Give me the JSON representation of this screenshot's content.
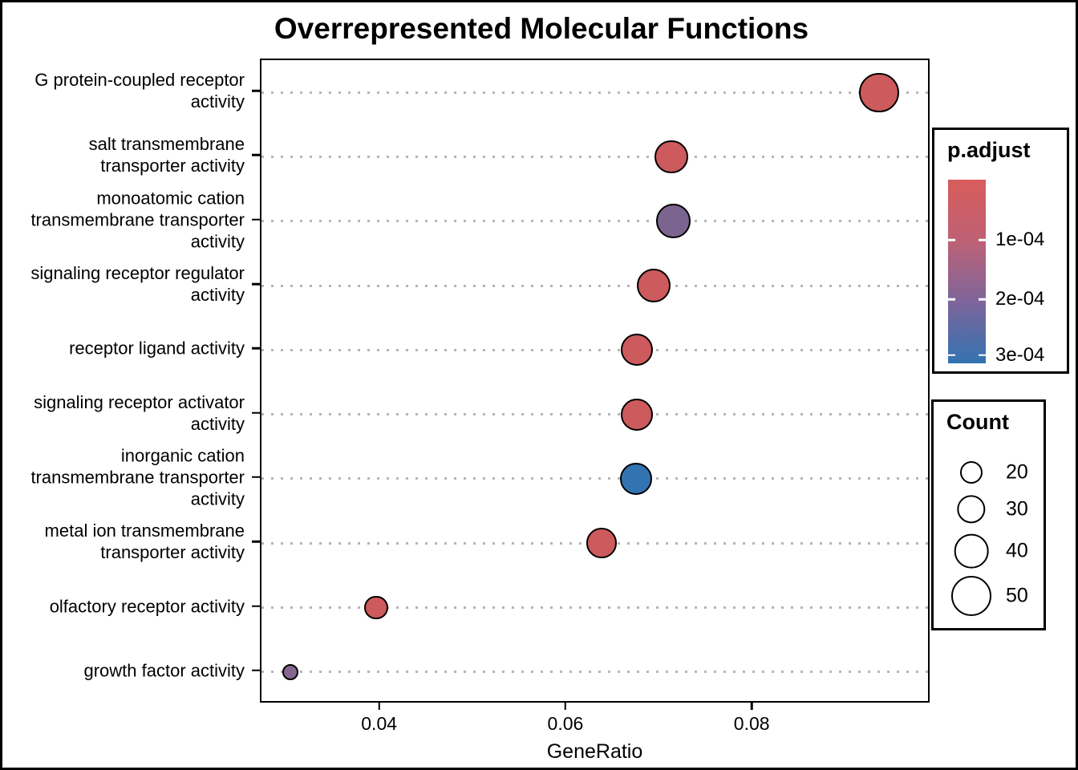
{
  "title": "Overrepresented Molecular Functions",
  "x_axis": {
    "label": "GeneRatio",
    "tick_labels": [
      "0.04",
      "0.06",
      "0.08"
    ]
  },
  "legend_padjust": {
    "title": "p.adjust",
    "tick_labels": [
      "1e-04",
      "2e-04",
      "3e-04"
    ],
    "tick_positions_pct": [
      32.8,
      65.1,
      95.6
    ],
    "gradient_stops": [
      "#D85C5B 0%",
      "#BE6174 33%",
      "#7F659B 66%",
      "#3473B1 100%"
    ]
  },
  "legend_count": {
    "title": "Count",
    "entries": [
      {
        "label": "20",
        "count": 20
      },
      {
        "label": "30",
        "count": 30
      },
      {
        "label": "40",
        "count": 40
      },
      {
        "label": "50",
        "count": 50
      }
    ]
  },
  "chart_data": {
    "type": "scatter",
    "title": "Overrepresented Molecular Functions",
    "xlabel": "GeneRatio",
    "ylabel": "",
    "xlim": [
      0.0272,
      0.0991
    ],
    "x_ticks": [
      0.04,
      0.06,
      0.08
    ],
    "grid": "dotted horizontal per category",
    "legend_position": "right",
    "color_scale": {
      "name": "p.adjust",
      "low_color": "#D85C5B",
      "high_color": "#3473B1",
      "ticks": [
        0.0001,
        0.0002,
        0.0003
      ]
    },
    "size_scale": {
      "name": "Count",
      "legend_counts": [
        20,
        30,
        40,
        50
      ]
    },
    "points": [
      {
        "label": "G protein-coupled receptor activity",
        "label_lines": "G protein-coupled receptor\nactivity",
        "gene_ratio": 0.0935,
        "count": 49,
        "p_adjust": 2e-05,
        "color": "#CD5A5C"
      },
      {
        "label": "salt transmembrane transporter activity",
        "label_lines": "salt transmembrane\ntransporter activity",
        "gene_ratio": 0.0712,
        "count": 38,
        "p_adjust": 3e-05,
        "color": "#CD5A5C"
      },
      {
        "label": "monoatomic cation transmembrane transporter activity",
        "label_lines": "monoatomic cation\ntransmembrane transporter\nactivity",
        "gene_ratio": 0.0714,
        "count": 40,
        "p_adjust": 0.00019,
        "color": "#7C6490"
      },
      {
        "label": "signaling receptor regulator activity",
        "label_lines": "signaling receptor regulator\nactivity",
        "gene_ratio": 0.0693,
        "count": 39,
        "p_adjust": 3e-05,
        "color": "#CD5A5C"
      },
      {
        "label": "receptor ligand activity",
        "label_lines": "receptor ligand activity",
        "gene_ratio": 0.0675,
        "count": 36,
        "p_adjust": 2.5e-05,
        "color": "#CD5A5C"
      },
      {
        "label": "signaling receptor activator activity",
        "label_lines": "signaling receptor activator\nactivity",
        "gene_ratio": 0.0675,
        "count": 36,
        "p_adjust": 2.5e-05,
        "color": "#CD5A5C"
      },
      {
        "label": "inorganic cation transmembrane transporter activity",
        "label_lines": "inorganic cation\ntransmembrane transporter\nactivity",
        "gene_ratio": 0.0674,
        "count": 36,
        "p_adjust": 0.0003,
        "color": "#3274B2"
      },
      {
        "label": "metal ion transmembrane transporter activity",
        "label_lines": "metal ion transmembrane\ntransporter activity",
        "gene_ratio": 0.0637,
        "count": 33,
        "p_adjust": 4e-05,
        "color": "#CD5A5C"
      },
      {
        "label": "olfactory receptor activity",
        "label_lines": "olfactory receptor activity",
        "gene_ratio": 0.0395,
        "count": 22,
        "p_adjust": 3.5e-05,
        "color": "#CD5A5C"
      },
      {
        "label": "growth factor activity",
        "label_lines": "growth factor activity",
        "gene_ratio": 0.0303,
        "count": 10,
        "p_adjust": 0.00018,
        "color": "#87678F"
      }
    ]
  }
}
